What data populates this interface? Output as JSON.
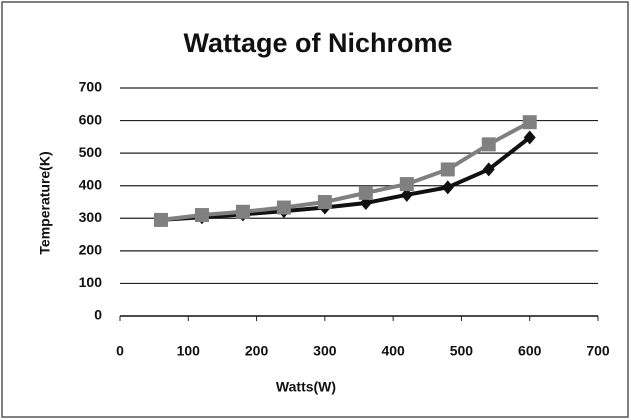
{
  "chart_data": {
    "type": "line",
    "title": "Wattage of Nichrome",
    "x_label": "Watts(W)",
    "y_label": "Temperature(K)",
    "x": [
      60,
      120,
      180,
      240,
      300,
      360,
      420,
      480,
      540,
      600
    ],
    "series": [
      {
        "color": "#111111",
        "marker": "diamond",
        "values": [
          295,
          303,
          312,
          322,
          333,
          347,
          372,
          395,
          450,
          548
        ]
      },
      {
        "color": "#808080",
        "marker": "square",
        "values": [
          295,
          310,
          320,
          333,
          350,
          378,
          405,
          450,
          527,
          595
        ]
      }
    ],
    "xlim": [
      0,
      700
    ],
    "xticks": [
      0,
      100,
      200,
      300,
      400,
      500,
      600,
      700
    ],
    "ylim": [
      0,
      700
    ],
    "yticks": [
      0,
      100,
      200,
      300,
      400,
      500,
      600,
      700
    ],
    "grid": true
  }
}
